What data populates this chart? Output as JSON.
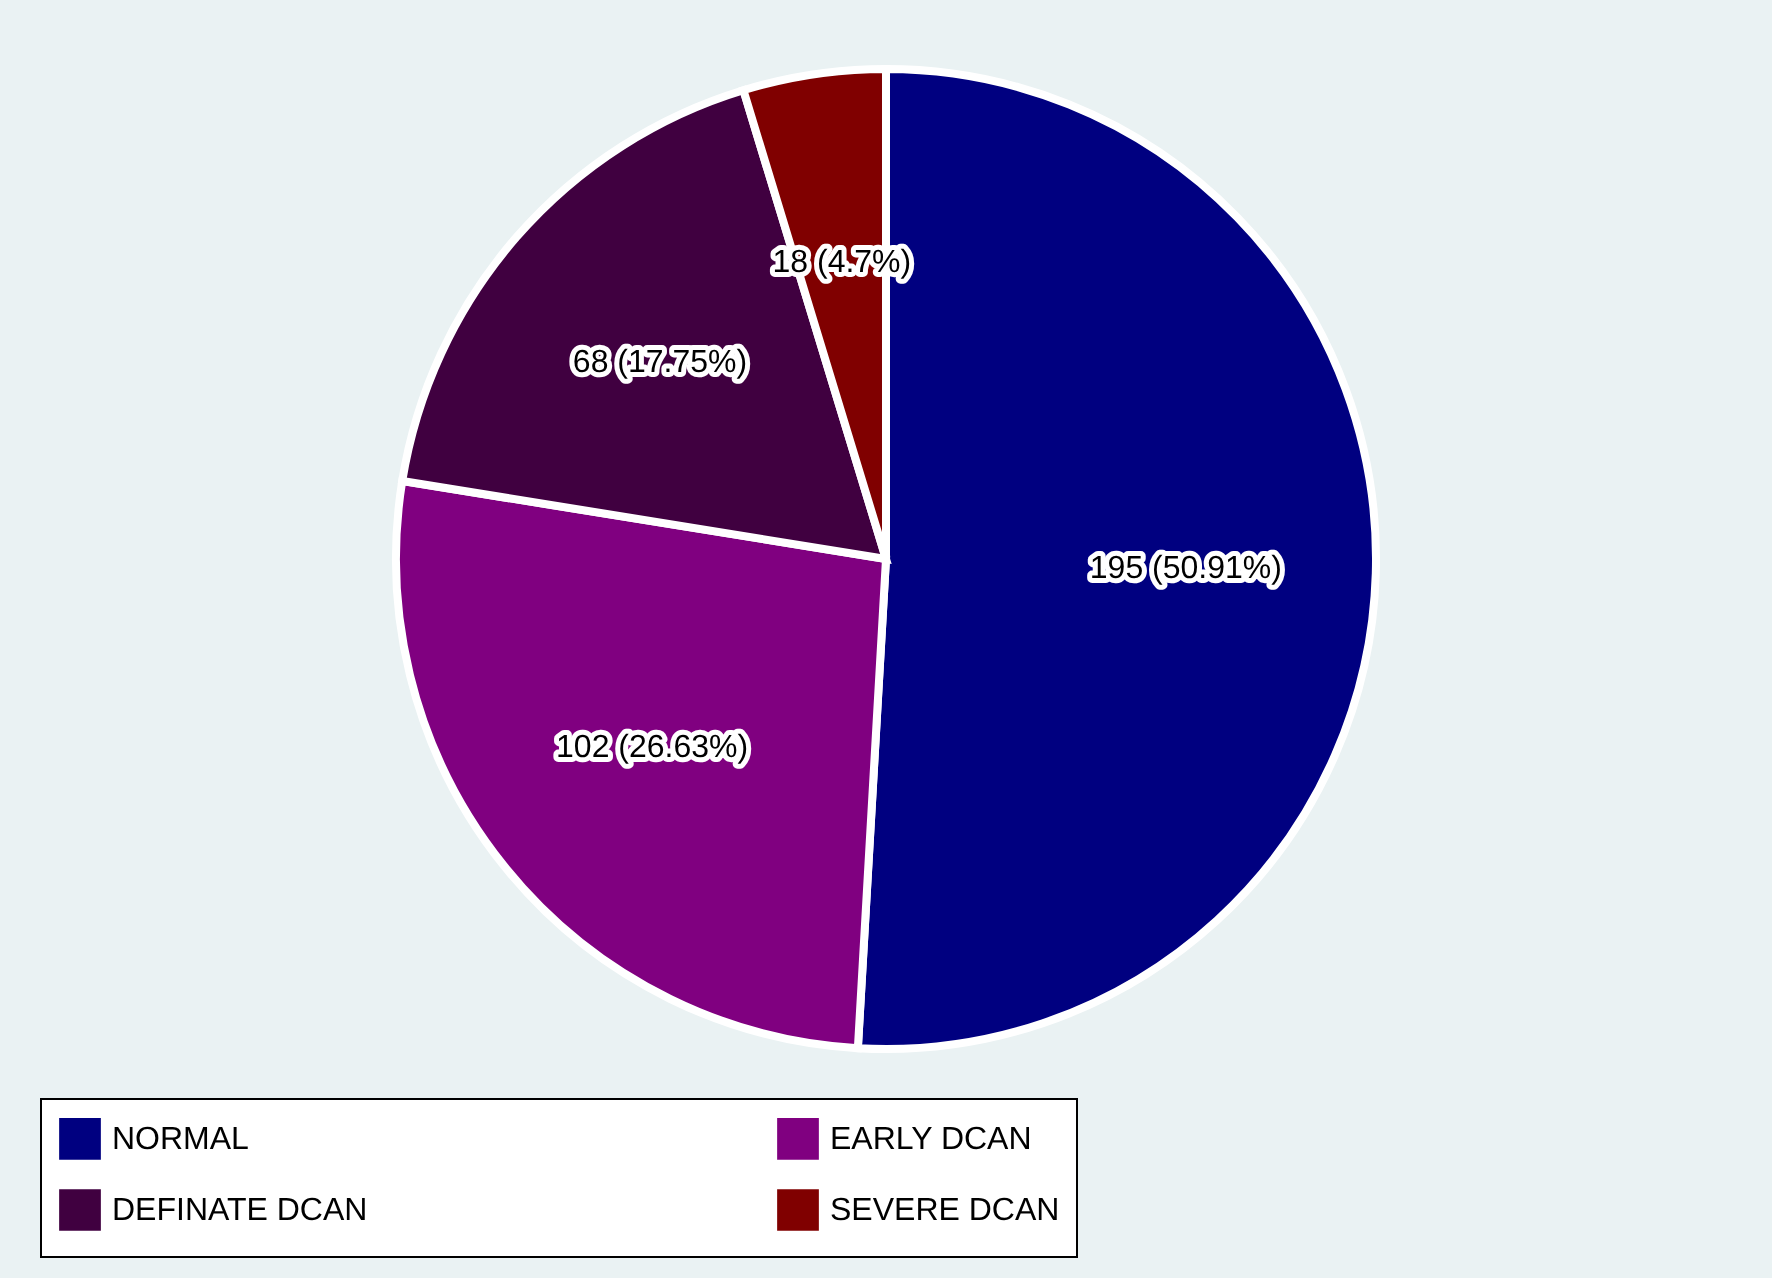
{
  "chart_data": {
    "type": "pie",
    "categories": [
      "NORMAL",
      "EARLY DCAN",
      "DEFINATE DCAN",
      "SEVERE DCAN"
    ],
    "values": [
      195,
      102,
      68,
      18
    ],
    "colors": [
      "#000080",
      "#800080",
      "#400040",
      "#800000"
    ],
    "value_labels": [
      "195 (50.91%)",
      "102 (26.63%)",
      "68 (17.75%)",
      "18 (4.7%)"
    ],
    "legend": "bottom"
  }
}
